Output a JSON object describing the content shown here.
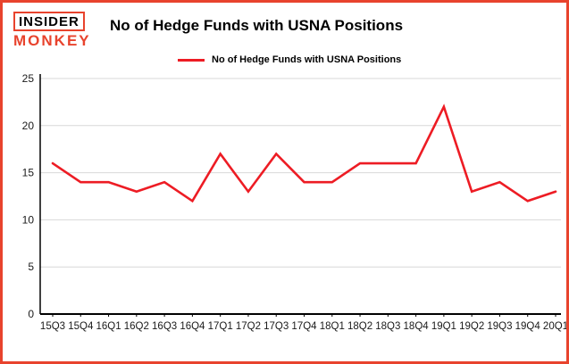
{
  "logo": {
    "top": "INSIDER",
    "bottom": "MONKEY"
  },
  "header": {
    "title": "No of Hedge Funds with USNA Positions"
  },
  "legend": {
    "label": "No of Hedge Funds with USNA Positions"
  },
  "colors": {
    "line": "#ed1c24",
    "frame": "#e8432d",
    "logo_red": "#e8432d",
    "grid": "#d8d8d8",
    "axis": "#000000",
    "text": "#1a1a1a"
  },
  "chart_data": {
    "type": "line",
    "title": "No of Hedge Funds with USNA Positions",
    "categories": [
      "15Q3",
      "15Q4",
      "16Q1",
      "16Q2",
      "16Q3",
      "16Q4",
      "17Q1",
      "17Q2",
      "17Q3",
      "17Q4",
      "18Q1",
      "18Q2",
      "18Q3",
      "18Q4",
      "19Q1",
      "19Q2",
      "19Q3",
      "19Q4",
      "20Q1"
    ],
    "values": [
      16,
      14,
      14,
      13,
      14,
      12,
      17,
      13,
      17,
      14,
      14,
      16,
      16,
      16,
      22,
      13,
      14,
      12,
      13
    ],
    "xlabel": "",
    "ylabel": "",
    "ylim": [
      0,
      25
    ],
    "y_ticks": [
      0,
      5,
      10,
      15,
      20,
      25
    ],
    "grid": "horizontal",
    "legend_position": "top-left"
  }
}
